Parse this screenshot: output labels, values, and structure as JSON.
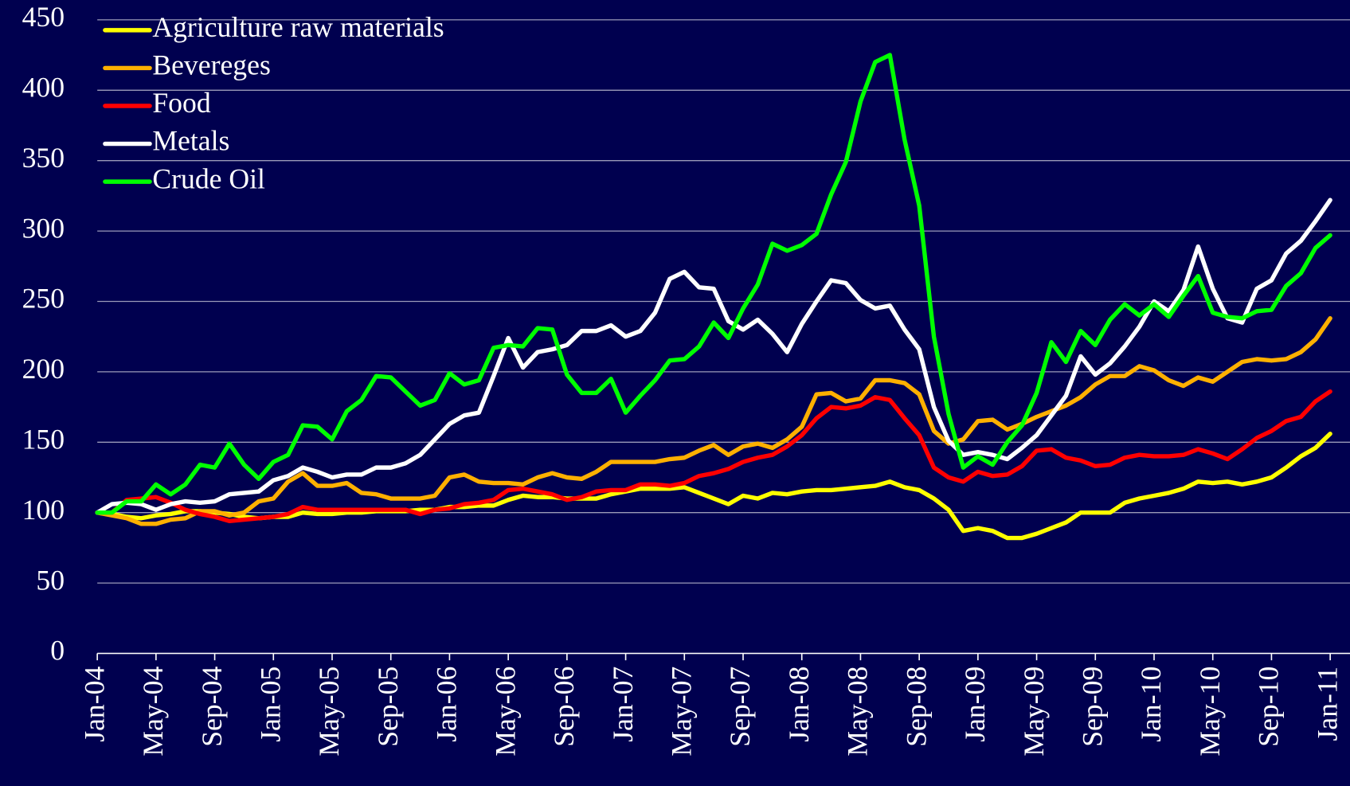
{
  "chart_data": {
    "type": "line",
    "categories": [
      "Jan-04",
      null,
      null,
      null,
      "May-04",
      null,
      null,
      null,
      "Sep-04",
      null,
      null,
      null,
      "Jan-05",
      null,
      null,
      null,
      "May-05",
      null,
      null,
      null,
      "Sep-05",
      null,
      null,
      null,
      "Jan-06",
      null,
      null,
      null,
      "May-06",
      null,
      null,
      null,
      "Sep-06",
      null,
      null,
      null,
      "Jan-07",
      null,
      null,
      null,
      "May-07",
      null,
      null,
      null,
      "Sep-07",
      null,
      null,
      null,
      "Jan-08",
      null,
      null,
      null,
      "May-08",
      null,
      null,
      null,
      "Sep-08",
      null,
      null,
      null,
      "Jan-09",
      null,
      null,
      null,
      "May-09",
      null,
      null,
      null,
      "Sep-09",
      null,
      null,
      null,
      "Jan-10",
      null,
      null,
      null,
      "May-10",
      null,
      null,
      null,
      "Sep-10",
      null,
      null,
      null,
      "Jan-11"
    ],
    "series": [
      {
        "name": "Agriculture raw materials",
        "color": "#ffff00",
        "values": [
          100,
          99,
          97,
          96,
          98,
          99,
          101,
          101,
          100,
          99,
          97,
          96,
          97,
          97,
          100,
          99,
          99,
          100,
          100,
          101,
          101,
          101,
          102,
          102,
          104,
          104,
          105,
          105,
          109,
          112,
          111,
          111,
          110,
          110,
          110,
          113,
          115,
          117,
          117,
          117,
          118,
          114,
          110,
          106,
          112,
          110,
          114,
          113,
          115,
          116,
          116,
          117,
          118,
          119,
          122,
          118,
          116,
          110,
          102,
          87,
          89,
          87,
          82,
          82,
          85,
          89,
          93,
          100,
          100,
          100,
          107,
          110,
          112,
          114,
          117,
          122,
          121,
          122,
          120,
          122,
          125,
          132,
          140,
          146,
          156
        ]
      },
      {
        "name": "Bevereges",
        "color": "#ffb000",
        "values": [
          100,
          98,
          96,
          92,
          92,
          95,
          96,
          101,
          101,
          98,
          100,
          108,
          110,
          122,
          128,
          119,
          119,
          121,
          114,
          113,
          110,
          110,
          110,
          112,
          125,
          127,
          122,
          121,
          121,
          120,
          125,
          128,
          125,
          124,
          129,
          136,
          136,
          136,
          136,
          138,
          139,
          144,
          148,
          141,
          147,
          149,
          146,
          152,
          161,
          184,
          185,
          179,
          181,
          194,
          194,
          192,
          184,
          158,
          149,
          152,
          165,
          166,
          159,
          163,
          168,
          172,
          176,
          182,
          191,
          197,
          197,
          204,
          201,
          194,
          190,
          196,
          193,
          200,
          207,
          209,
          208,
          209,
          214,
          223,
          238
        ]
      },
      {
        "name": "Food",
        "color": "#ff0000",
        "values": [
          100,
          100,
          109,
          110,
          111,
          107,
          102,
          99,
          97,
          94,
          95,
          96,
          97,
          99,
          104,
          102,
          102,
          102,
          102,
          102,
          102,
          102,
          99,
          102,
          103,
          106,
          107,
          109,
          116,
          117,
          115,
          113,
          109,
          111,
          115,
          116,
          116,
          120,
          120,
          119,
          121,
          126,
          128,
          131,
          136,
          139,
          141,
          147,
          155,
          167,
          175,
          174,
          176,
          182,
          180,
          167,
          155,
          132,
          125,
          122,
          129,
          126,
          127,
          133,
          144,
          145,
          139,
          137,
          133,
          134,
          139,
          141,
          140,
          140,
          141,
          145,
          142,
          138,
          145,
          153,
          158,
          165,
          168,
          179,
          186
        ]
      },
      {
        "name": "Metals",
        "color": "#ffffff",
        "values": [
          100,
          106,
          107,
          106,
          102,
          106,
          108,
          107,
          108,
          113,
          114,
          115,
          123,
          126,
          132,
          129,
          125,
          127,
          127,
          132,
          132,
          135,
          141,
          152,
          163,
          169,
          171,
          197,
          224,
          203,
          214,
          216,
          219,
          229,
          229,
          233,
          225,
          229,
          242,
          266,
          271,
          260,
          259,
          236,
          230,
          237,
          227,
          214,
          234,
          250,
          265,
          263,
          251,
          245,
          247,
          230,
          216,
          175,
          151,
          141,
          143,
          141,
          138,
          146,
          155,
          169,
          183,
          211,
          198,
          206,
          218,
          232,
          250,
          243,
          258,
          289,
          259,
          238,
          235,
          259,
          265,
          284,
          293,
          307,
          322
        ]
      },
      {
        "name": "Crude Oil",
        "color": "#00ff00",
        "values": [
          100,
          100,
          108,
          108,
          120,
          113,
          120,
          134,
          132,
          149,
          134,
          124,
          136,
          141,
          162,
          161,
          152,
          172,
          180,
          197,
          196,
          186,
          176,
          180,
          199,
          191,
          194,
          217,
          219,
          218,
          231,
          230,
          198,
          185,
          185,
          195,
          171,
          183,
          194,
          208,
          209,
          218,
          235,
          224,
          245,
          262,
          291,
          286,
          290,
          298,
          326,
          349,
          392,
          420,
          425,
          365,
          318,
          225,
          170,
          132,
          140,
          134,
          150,
          162,
          185,
          221,
          207,
          229,
          219,
          237,
          248,
          240,
          248,
          239,
          254,
          268,
          242,
          239,
          238,
          243,
          244,
          261,
          270,
          288,
          297
        ]
      }
    ],
    "ylim": [
      0,
      450
    ],
    "yticks": [
      0,
      50,
      100,
      150,
      200,
      250,
      300,
      350,
      400,
      450
    ],
    "grid": true,
    "legend": "upper left"
  }
}
